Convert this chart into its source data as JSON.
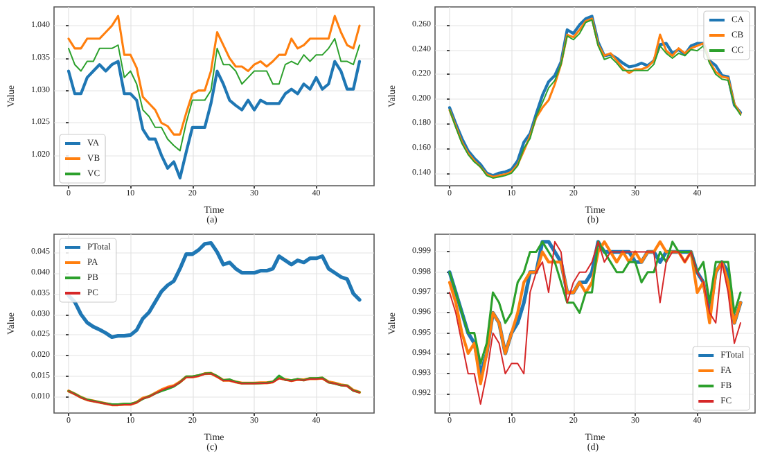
{
  "chart_data": [
    {
      "type": "line",
      "xlabel": "Time",
      "ylabel": "Value",
      "annotations": [
        "(a)"
      ],
      "grid": true,
      "legend": "bottom left",
      "marker": "none",
      "line_style": "solid",
      "x": [
        0,
        1,
        2,
        3,
        4,
        5,
        6,
        7,
        8,
        9,
        10,
        11,
        12,
        13,
        14,
        15,
        16,
        17,
        18,
        19,
        20,
        21,
        22,
        23,
        24,
        25,
        26,
        27,
        28,
        29,
        30,
        31,
        32,
        33,
        34,
        35,
        36,
        37,
        38,
        39,
        40,
        41,
        42,
        43,
        44,
        45,
        46,
        47
      ],
      "xlim": [
        -2.35,
        49.35
      ],
      "xticks": [
        0,
        10,
        20,
        30,
        40
      ],
      "ylim": [
        1.0153,
        1.0429
      ],
      "yticks": [
        {
          "value": 1.02,
          "label": "1.020"
        },
        {
          "value": 1.025,
          "label": "1.025"
        },
        {
          "value": 1.03,
          "label": "1.030"
        },
        {
          "value": 1.035,
          "label": "1.035"
        },
        {
          "value": 1.04,
          "label": "1.040"
        }
      ],
      "series": [
        {
          "name": "VA",
          "color": "#1f77b4",
          "values": [
            1.033,
            1.0295,
            1.0295,
            1.032,
            1.033,
            1.034,
            1.033,
            1.034,
            1.0345,
            1.0295,
            1.0295,
            1.0285,
            1.024,
            1.0225,
            1.0225,
            1.02,
            1.018,
            1.019,
            1.0165,
            1.0205,
            1.0243,
            1.0243,
            1.0243,
            1.028,
            1.033,
            1.031,
            1.0285,
            1.0277,
            1.027,
            1.0285,
            1.027,
            1.0285,
            1.028,
            1.028,
            1.028,
            1.0295,
            1.0302,
            1.0295,
            1.031,
            1.0302,
            1.032,
            1.0302,
            1.031,
            1.0345,
            1.033,
            1.0302,
            1.0302,
            1.0345
          ]
        },
        {
          "name": "VB",
          "color": "#ff7f0e",
          "values": [
            1.038,
            1.0365,
            1.0365,
            1.038,
            1.038,
            1.038,
            1.039,
            1.04,
            1.0415,
            1.0355,
            1.0355,
            1.0335,
            1.029,
            1.028,
            1.027,
            1.025,
            1.0245,
            1.0232,
            1.0232,
            1.0265,
            1.0295,
            1.03,
            1.03,
            1.033,
            1.039,
            1.037,
            1.035,
            1.0337,
            1.0337,
            1.033,
            1.034,
            1.0345,
            1.0337,
            1.0345,
            1.0355,
            1.0355,
            1.038,
            1.0365,
            1.037,
            1.038,
            1.038,
            1.038,
            1.038,
            1.0415,
            1.039,
            1.037,
            1.0365,
            1.04
          ]
        },
        {
          "name": "VC",
          "color": "#2ca02c",
          "values": [
            1.0365,
            1.034,
            1.033,
            1.0345,
            1.0345,
            1.0365,
            1.0365,
            1.0365,
            1.037,
            1.032,
            1.033,
            1.031,
            1.027,
            1.026,
            1.0243,
            1.0243,
            1.0225,
            1.0215,
            1.0207,
            1.025,
            1.0285,
            1.0285,
            1.0285,
            1.03,
            1.0365,
            1.034,
            1.034,
            1.033,
            1.031,
            1.032,
            1.033,
            1.033,
            1.033,
            1.031,
            1.031,
            1.034,
            1.0345,
            1.034,
            1.0355,
            1.0345,
            1.0355,
            1.0355,
            1.0365,
            1.038,
            1.0345,
            1.0345,
            1.034,
            1.037
          ]
        }
      ]
    },
    {
      "type": "line",
      "xlabel": "Time",
      "ylabel": "Value",
      "annotations": [
        "(b)"
      ],
      "grid": true,
      "legend": "top right",
      "marker": "none",
      "line_style": "solid",
      "x": [
        0,
        1,
        2,
        3,
        4,
        5,
        6,
        7,
        8,
        9,
        10,
        11,
        12,
        13,
        14,
        15,
        16,
        17,
        18,
        19,
        20,
        21,
        22,
        23,
        24,
        25,
        26,
        27,
        28,
        29,
        30,
        31,
        32,
        33,
        34,
        35,
        36,
        37,
        38,
        39,
        40,
        41,
        42,
        43,
        44,
        45,
        46,
        47
      ],
      "xlim": [
        -2.35,
        49.35
      ],
      "xticks": [
        0,
        10,
        20,
        30,
        40
      ],
      "ylim": [
        0.1298,
        0.2745
      ],
      "yticks": [
        {
          "value": 0.14,
          "label": "0.140"
        },
        {
          "value": 0.16,
          "label": "0.160"
        },
        {
          "value": 0.18,
          "label": "0.180"
        },
        {
          "value": 0.2,
          "label": "0.200"
        },
        {
          "value": 0.22,
          "label": "0.220"
        },
        {
          "value": 0.24,
          "label": "0.240"
        },
        {
          "value": 0.26,
          "label": "0.260"
        }
      ],
      "series": [
        {
          "name": "CA",
          "color": "#1f77b4",
          "values": [
            0.193,
            0.18,
            0.168,
            0.158,
            0.152,
            0.147,
            0.14,
            0.138,
            0.14,
            0.141,
            0.143,
            0.15,
            0.165,
            0.172,
            0.188,
            0.203,
            0.214,
            0.219,
            0.23,
            0.256,
            0.253,
            0.26,
            0.265,
            0.267,
            0.246,
            0.235,
            0.236,
            0.233,
            0.229,
            0.226,
            0.227,
            0.229,
            0.227,
            0.231,
            0.244,
            0.245,
            0.237,
            0.24,
            0.236,
            0.243,
            0.245,
            0.245,
            0.231,
            0.227,
            0.219,
            0.218,
            0.195,
            0.189
          ]
        },
        {
          "name": "CB",
          "color": "#ff7f0e",
          "values": [
            0.191,
            0.178,
            0.165,
            0.156,
            0.15,
            0.145,
            0.139,
            0.137,
            0.138,
            0.139,
            0.141,
            0.147,
            0.158,
            0.17,
            0.185,
            0.193,
            0.199,
            0.212,
            0.228,
            0.252,
            0.25,
            0.256,
            0.263,
            0.265,
            0.244,
            0.235,
            0.237,
            0.231,
            0.225,
            0.221,
            0.224,
            0.224,
            0.226,
            0.231,
            0.252,
            0.239,
            0.235,
            0.241,
            0.237,
            0.241,
            0.243,
            0.245,
            0.23,
            0.222,
            0.218,
            0.217,
            0.196,
            0.188
          ]
        },
        {
          "name": "CC",
          "color": "#2ca02c",
          "values": [
            0.191,
            0.177,
            0.164,
            0.155,
            0.149,
            0.145,
            0.138,
            0.136,
            0.137,
            0.138,
            0.14,
            0.146,
            0.16,
            0.168,
            0.186,
            0.197,
            0.209,
            0.215,
            0.228,
            0.251,
            0.248,
            0.253,
            0.262,
            0.264,
            0.243,
            0.232,
            0.234,
            0.229,
            0.223,
            0.223,
            0.223,
            0.223,
            0.223,
            0.228,
            0.243,
            0.237,
            0.233,
            0.237,
            0.235,
            0.24,
            0.239,
            0.243,
            0.229,
            0.22,
            0.216,
            0.215,
            0.195,
            0.187
          ]
        }
      ]
    },
    {
      "type": "line",
      "xlabel": "Time",
      "ylabel": "Value",
      "annotations": [
        "(c)"
      ],
      "grid": true,
      "legend": "top left",
      "marker": "none",
      "line_style": "solid",
      "x": [
        0,
        1,
        2,
        3,
        4,
        5,
        6,
        7,
        8,
        9,
        10,
        11,
        12,
        13,
        14,
        15,
        16,
        17,
        18,
        19,
        20,
        21,
        22,
        23,
        24,
        25,
        26,
        27,
        28,
        29,
        30,
        31,
        32,
        33,
        34,
        35,
        36,
        37,
        38,
        39,
        40,
        41,
        42,
        43,
        44,
        45,
        46,
        47
      ],
      "xlim": [
        -2.35,
        49.35
      ],
      "xticks": [
        0,
        10,
        20,
        30,
        40
      ],
      "ylim": [
        0.0062,
        0.0493
      ],
      "yticks": [
        {
          "value": 0.01,
          "label": "0.010"
        },
        {
          "value": 0.015,
          "label": "0.015"
        },
        {
          "value": 0.02,
          "label": "0.020"
        },
        {
          "value": 0.025,
          "label": "0.025"
        },
        {
          "value": 0.03,
          "label": "0.030"
        },
        {
          "value": 0.035,
          "label": "0.035"
        },
        {
          "value": 0.04,
          "label": "0.040"
        },
        {
          "value": 0.045,
          "label": "0.045"
        }
      ],
      "series": [
        {
          "name": "PTotal",
          "color": "#1f77b4",
          "values": [
            0.0345,
            0.033,
            0.03,
            0.028,
            0.027,
            0.0263,
            0.0255,
            0.0245,
            0.0248,
            0.0248,
            0.025,
            0.0262,
            0.029,
            0.0305,
            0.033,
            0.0355,
            0.037,
            0.038,
            0.041,
            0.0445,
            0.0445,
            0.0455,
            0.047,
            0.0472,
            0.045,
            0.042,
            0.0425,
            0.041,
            0.04,
            0.04,
            0.04,
            0.0405,
            0.0405,
            0.041,
            0.044,
            0.043,
            0.042,
            0.043,
            0.0425,
            0.0435,
            0.0435,
            0.044,
            0.041,
            0.04,
            0.039,
            0.0385,
            0.035,
            0.0335
          ]
        },
        {
          "name": "PA",
          "color": "#ff7f0e",
          "values": [
            0.0115,
            0.0108,
            0.01,
            0.0094,
            0.0091,
            0.0088,
            0.0085,
            0.0082,
            0.0082,
            0.0083,
            0.0083,
            0.0088,
            0.0098,
            0.0102,
            0.011,
            0.0118,
            0.0124,
            0.0128,
            0.0137,
            0.0149,
            0.0149,
            0.0152,
            0.0157,
            0.0158,
            0.015,
            0.0141,
            0.0141,
            0.0137,
            0.0134,
            0.0134,
            0.0134,
            0.0135,
            0.0135,
            0.0137,
            0.0147,
            0.0143,
            0.014,
            0.0143,
            0.0142,
            0.0145,
            0.0145,
            0.0146,
            0.0137,
            0.0134,
            0.013,
            0.0128,
            0.0117,
            0.0112
          ]
        },
        {
          "name": "PB",
          "color": "#2ca02c",
          "values": [
            0.0115,
            0.0108,
            0.01,
            0.0094,
            0.0091,
            0.0088,
            0.0085,
            0.0083,
            0.0083,
            0.0084,
            0.0084,
            0.0088,
            0.0096,
            0.0102,
            0.0109,
            0.0115,
            0.012,
            0.0126,
            0.0136,
            0.015,
            0.015,
            0.0153,
            0.0157,
            0.0158,
            0.0151,
            0.0141,
            0.0143,
            0.0137,
            0.0134,
            0.0134,
            0.0134,
            0.0134,
            0.0135,
            0.0137,
            0.0152,
            0.0142,
            0.0141,
            0.0144,
            0.0141,
            0.0146,
            0.0146,
            0.0147,
            0.0136,
            0.0133,
            0.0129,
            0.0128,
            0.0116,
            0.0112
          ]
        },
        {
          "name": "PC",
          "color": "#d62728",
          "values": [
            0.0115,
            0.0107,
            0.0099,
            0.0093,
            0.009,
            0.0087,
            0.0084,
            0.0081,
            0.0081,
            0.0082,
            0.0082,
            0.0087,
            0.0097,
            0.0101,
            0.0109,
            0.0117,
            0.0123,
            0.0127,
            0.0136,
            0.0148,
            0.0148,
            0.0151,
            0.0156,
            0.0157,
            0.0149,
            0.014,
            0.014,
            0.0136,
            0.0133,
            0.0133,
            0.0133,
            0.0134,
            0.0134,
            0.0136,
            0.0145,
            0.0142,
            0.0139,
            0.0142,
            0.0141,
            0.0144,
            0.0144,
            0.0145,
            0.0136,
            0.0133,
            0.0129,
            0.0127,
            0.0116,
            0.0111
          ]
        }
      ]
    },
    {
      "type": "line",
      "xlabel": "Time",
      "ylabel": "Value",
      "annotations": [
        "(d)"
      ],
      "grid": true,
      "legend": "bottom right",
      "marker": "none",
      "line_style": "solid",
      "x": [
        0,
        1,
        2,
        3,
        4,
        5,
        6,
        7,
        8,
        9,
        10,
        11,
        12,
        13,
        14,
        15,
        16,
        17,
        18,
        19,
        20,
        21,
        22,
        23,
        24,
        25,
        26,
        27,
        28,
        29,
        30,
        31,
        32,
        33,
        34,
        35,
        36,
        37,
        38,
        39,
        40,
        41,
        42,
        43,
        44,
        45,
        46,
        47
      ],
      "xlim": [
        -2.35,
        49.35
      ],
      "xticks": [
        0,
        10,
        20,
        30,
        40
      ],
      "ylim": [
        0.99106,
        0.99987
      ],
      "yticks": [
        0.992,
        0.993,
        0.994,
        0.995,
        0.996,
        0.997,
        0.998,
        0.999
      ],
      "series": [
        {
          "name": "FTotal",
          "color": "#1f77b4",
          "values": [
            0.998,
            0.997,
            0.996,
            0.995,
            0.9945,
            0.993,
            0.994,
            0.996,
            0.9955,
            0.994,
            0.995,
            0.9955,
            0.9965,
            0.998,
            0.998,
            0.9995,
            0.9995,
            0.999,
            0.9985,
            0.997,
            0.997,
            0.9975,
            0.9975,
            0.998,
            0.9995,
            0.999,
            0.999,
            0.999,
            0.999,
            0.999,
            0.9985,
            0.9985,
            0.999,
            0.999,
            0.9985,
            0.999,
            0.999,
            0.999,
            0.999,
            0.999,
            0.998,
            0.9975,
            0.996,
            0.998,
            0.9985,
            0.998,
            0.9955,
            0.9965
          ]
        },
        {
          "name": "FA",
          "color": "#ff7f0e",
          "values": [
            0.9975,
            0.9965,
            0.995,
            0.994,
            0.9945,
            0.9925,
            0.994,
            0.996,
            0.9955,
            0.994,
            0.995,
            0.996,
            0.9975,
            0.998,
            0.998,
            0.999,
            0.9985,
            0.9985,
            0.9985,
            0.997,
            0.997,
            0.9975,
            0.997,
            0.9975,
            0.999,
            0.9995,
            0.999,
            0.9985,
            0.999,
            0.9985,
            0.999,
            0.9985,
            0.999,
            0.999,
            0.9995,
            0.999,
            0.999,
            0.999,
            0.9985,
            0.999,
            0.997,
            0.9975,
            0.9955,
            0.998,
            0.9985,
            0.9975,
            0.9955,
            0.9965
          ]
        },
        {
          "name": "FB",
          "color": "#2ca02c",
          "values": [
            0.998,
            0.997,
            0.996,
            0.995,
            0.995,
            0.9935,
            0.9945,
            0.997,
            0.9965,
            0.9955,
            0.996,
            0.9975,
            0.998,
            0.999,
            0.999,
            0.9995,
            0.999,
            0.9985,
            0.9975,
            0.9965,
            0.9965,
            0.996,
            0.997,
            0.997,
            0.9995,
            0.999,
            0.9985,
            0.998,
            0.998,
            0.9985,
            0.9985,
            0.9975,
            0.998,
            0.998,
            0.999,
            0.9985,
            0.9995,
            0.999,
            0.999,
            0.999,
            0.998,
            0.9985,
            0.9965,
            0.9985,
            0.9985,
            0.9985,
            0.996,
            0.997
          ]
        },
        {
          "name": "FC",
          "color": "#d62728",
          "values": [
            0.997,
            0.996,
            0.9945,
            0.993,
            0.993,
            0.9915,
            0.993,
            0.995,
            0.9945,
            0.993,
            0.9935,
            0.9935,
            0.993,
            0.997,
            0.998,
            0.9985,
            0.997,
            0.9995,
            0.999,
            0.9965,
            0.9975,
            0.998,
            0.998,
            0.9985,
            0.9995,
            0.9985,
            0.999,
            0.999,
            0.999,
            0.999,
            0.999,
            0.999,
            0.999,
            0.999,
            0.9965,
            0.9985,
            0.999,
            0.999,
            0.9985,
            0.999,
            0.998,
            0.9975,
            0.996,
            0.9955,
            0.9985,
            0.997,
            0.9945,
            0.9955
          ]
        }
      ]
    }
  ]
}
